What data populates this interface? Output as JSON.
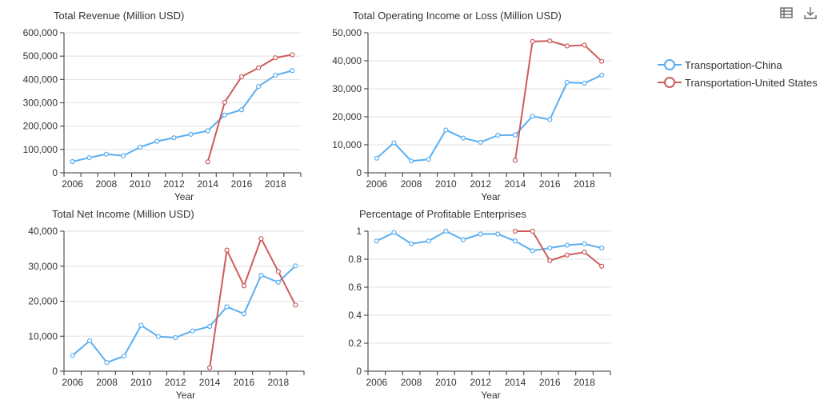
{
  "toolbar": {
    "table_icon": "table-icon",
    "download_icon": "download-icon"
  },
  "legend": [
    {
      "name": "Transportation-China",
      "color": "#5aaef0"
    },
    {
      "name": "Transportation-United States",
      "color": "#cd5c5c"
    }
  ],
  "chart_data": [
    {
      "type": "line",
      "title": "Total Revenue (Million USD)",
      "xlabel": "Year",
      "ylim": [
        0,
        600000
      ],
      "yticks": [
        "0",
        "100,000",
        "200,000",
        "300,000",
        "400,000",
        "500,000",
        "600,000"
      ],
      "xticks": [
        "2006",
        "2008",
        "2010",
        "2012",
        "2014",
        "2016",
        "2018"
      ],
      "series": [
        {
          "name": "Transportation-China",
          "x": [
            2006,
            2007,
            2008,
            2009,
            2010,
            2011,
            2012,
            2013,
            2014,
            2015,
            2016,
            2017,
            2018,
            2019
          ],
          "values": [
            48000,
            65000,
            80000,
            73000,
            110000,
            135000,
            150000,
            165000,
            180000,
            248000,
            270000,
            370000,
            418000,
            438000
          ]
        },
        {
          "name": "Transportation-United States",
          "x": [
            2014,
            2015,
            2016,
            2017,
            2018,
            2019
          ],
          "values": [
            47000,
            302000,
            412000,
            450000,
            493000,
            506000
          ]
        }
      ]
    },
    {
      "type": "line",
      "title": "Total Operating Income or Loss (Million USD)",
      "xlabel": "Year",
      "ylim": [
        0,
        50000
      ],
      "yticks": [
        "0",
        "10,000",
        "20,000",
        "30,000",
        "40,000",
        "50,000"
      ],
      "xticks": [
        "2006",
        "2008",
        "2010",
        "2012",
        "2014",
        "2016",
        "2018"
      ],
      "series": [
        {
          "name": "Transportation-China",
          "x": [
            2006,
            2007,
            2008,
            2009,
            2010,
            2011,
            2012,
            2013,
            2014,
            2015,
            2016,
            2017,
            2018,
            2019
          ],
          "values": [
            5200,
            10700,
            4200,
            4800,
            15300,
            12400,
            10900,
            13400,
            13500,
            20200,
            19000,
            32300,
            32000,
            34900
          ]
        },
        {
          "name": "Transportation-United States",
          "x": [
            2014,
            2015,
            2016,
            2017,
            2018,
            2019
          ],
          "values": [
            4400,
            46900,
            47100,
            45300,
            45600,
            39800
          ]
        }
      ]
    },
    {
      "type": "line",
      "title": "Total Net Income (Million USD)",
      "xlabel": "Year",
      "ylim": [
        0,
        40000
      ],
      "yticks": [
        "0",
        "10,000",
        "20,000",
        "30,000",
        "40,000"
      ],
      "xticks": [
        "2006",
        "2008",
        "2010",
        "2012",
        "2014",
        "2016",
        "2018"
      ],
      "series": [
        {
          "name": "Transportation-China",
          "x": [
            2006,
            2007,
            2008,
            2009,
            2010,
            2011,
            2012,
            2013,
            2014,
            2015,
            2016,
            2017,
            2018,
            2019
          ],
          "values": [
            4500,
            8700,
            2500,
            4300,
            13100,
            9900,
            9600,
            11500,
            12800,
            18400,
            16400,
            27400,
            25400,
            30100
          ]
        },
        {
          "name": "Transportation-United States",
          "x": [
            2014,
            2015,
            2016,
            2017,
            2018,
            2019
          ],
          "values": [
            1000,
            34600,
            24400,
            37900,
            28500,
            18900
          ]
        }
      ]
    },
    {
      "type": "line",
      "title": "Percentage of Profitable Enterprises",
      "xlabel": "Year",
      "ylim": [
        0,
        1
      ],
      "yticks": [
        "0",
        "0.2",
        "0.4",
        "0.6",
        "0.8",
        "1"
      ],
      "xticks": [
        "2006",
        "2008",
        "2010",
        "2012",
        "2014",
        "2016",
        "2018"
      ],
      "series": [
        {
          "name": "Transportation-China",
          "x": [
            2006,
            2007,
            2008,
            2009,
            2010,
            2011,
            2012,
            2013,
            2014,
            2015,
            2016,
            2017,
            2018,
            2019
          ],
          "values": [
            0.93,
            0.99,
            0.91,
            0.93,
            1.0,
            0.94,
            0.98,
            0.98,
            0.93,
            0.86,
            0.88,
            0.9,
            0.91,
            0.88
          ]
        },
        {
          "name": "Transportation-United States",
          "x": [
            2014,
            2015,
            2016,
            2017,
            2018,
            2019
          ],
          "values": [
            1.0,
            1.0,
            0.79,
            0.83,
            0.85,
            0.75
          ]
        }
      ]
    }
  ]
}
